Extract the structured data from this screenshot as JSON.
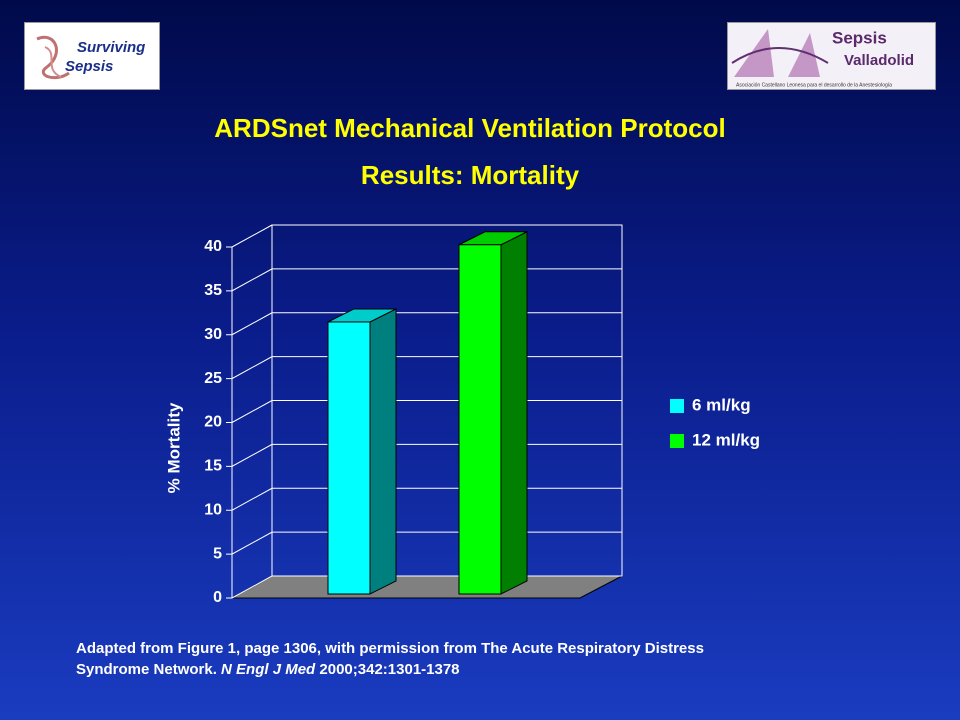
{
  "logos": [
    {
      "line1": "Surviving",
      "line2": "Sepsis"
    },
    {
      "line1": "Sepsis",
      "line2": "Valladolid",
      "line3": "Asociación Castellano Leonesa para el desarrollo de la Anestesiología"
    }
  ],
  "chart_data": {
    "type": "bar3d",
    "title": "ARDSnet Mechanical Ventilation Protocol",
    "subtitle": "Results: Mortality",
    "y_label": "% Mortality",
    "categories": [
      null
    ],
    "series": [
      {
        "name": "6 ml/kg",
        "color": "#00ffff",
        "values": [
          31
        ]
      },
      {
        "name": "12 ml/kg",
        "color": "#00ff00",
        "values": [
          39.8
        ]
      }
    ],
    "ylim": [
      0,
      40
    ],
    "yticks": [
      0,
      5,
      10,
      15,
      20,
      25,
      30,
      35,
      40
    ],
    "grid": true,
    "legend": "right"
  },
  "footnote": [
    "Adapted from Figure 1, page 1306, with permission from The Acute Respiratory Distress",
    "Syndrome Network. ",
    "N Engl J Med",
    " 2000;342:1301-1378"
  ]
}
